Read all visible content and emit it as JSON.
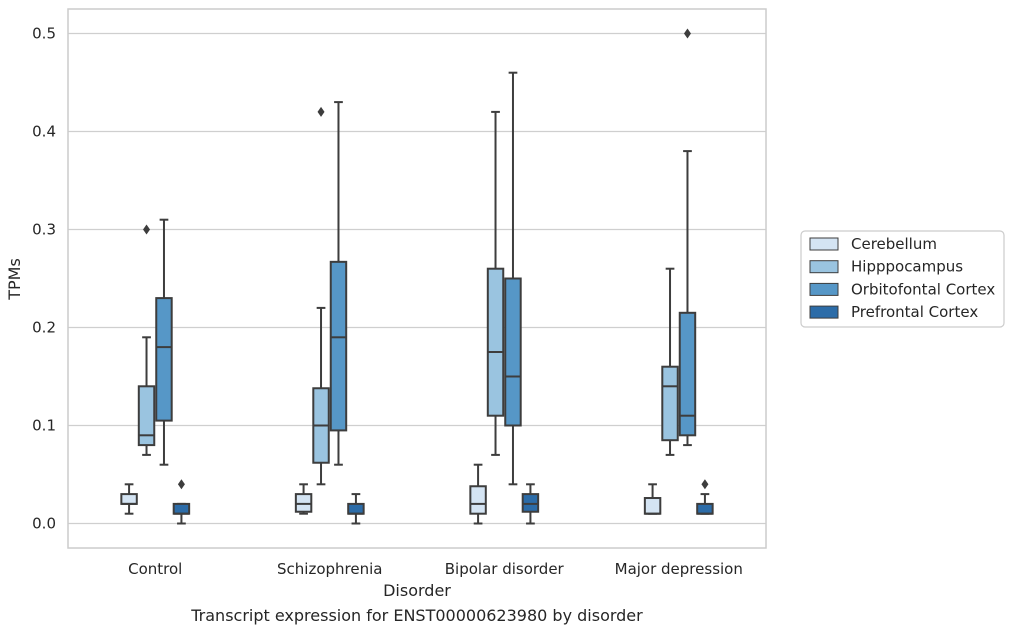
{
  "chart_data": {
    "type": "box",
    "caption": "Transcript expression for ENST00000623980 by disorder",
    "xlabel": "Disorder",
    "ylabel": "TPMs",
    "ylim": [
      -0.025,
      0.525
    ],
    "yticks": [
      "0.0",
      "0.1",
      "0.2",
      "0.3",
      "0.4",
      "0.5"
    ],
    "categories": [
      "Control",
      "Schizophrenia",
      "Bipolar disorder",
      "Major depression"
    ],
    "grid": true,
    "legend_position": "right",
    "series": [
      {
        "name": "Cerebellum",
        "color": "#d4e4f3",
        "boxes": [
          {
            "whisker_low": 0.01,
            "q1": 0.02,
            "median": 0.02,
            "q3": 0.03,
            "whisker_high": 0.04,
            "outliers": []
          },
          {
            "whisker_low": 0.01,
            "q1": 0.012,
            "median": 0.02,
            "q3": 0.03,
            "whisker_high": 0.04,
            "outliers": []
          },
          {
            "whisker_low": 0.0,
            "q1": 0.01,
            "median": 0.02,
            "q3": 0.038,
            "whisker_high": 0.06,
            "outliers": []
          },
          {
            "whisker_low": 0.01,
            "q1": 0.01,
            "median": 0.01,
            "q3": 0.026,
            "whisker_high": 0.04,
            "outliers": []
          }
        ]
      },
      {
        "name": "Hipppocampus",
        "color": "#9ac4e0",
        "boxes": [
          {
            "whisker_low": 0.07,
            "q1": 0.08,
            "median": 0.09,
            "q3": 0.14,
            "whisker_high": 0.19,
            "outliers": [
              0.3
            ]
          },
          {
            "whisker_low": 0.04,
            "q1": 0.062,
            "median": 0.1,
            "q3": 0.138,
            "whisker_high": 0.22,
            "outliers": [
              0.42
            ]
          },
          {
            "whisker_low": 0.07,
            "q1": 0.11,
            "median": 0.175,
            "q3": 0.26,
            "whisker_high": 0.42,
            "outliers": []
          },
          {
            "whisker_low": 0.07,
            "q1": 0.085,
            "median": 0.14,
            "q3": 0.16,
            "whisker_high": 0.26,
            "outliers": []
          }
        ]
      },
      {
        "name": "Orbitofontal Cortex",
        "color": "#5697c7",
        "boxes": [
          {
            "whisker_low": 0.06,
            "q1": 0.105,
            "median": 0.18,
            "q3": 0.23,
            "whisker_high": 0.31,
            "outliers": []
          },
          {
            "whisker_low": 0.06,
            "q1": 0.095,
            "median": 0.19,
            "q3": 0.267,
            "whisker_high": 0.43,
            "outliers": []
          },
          {
            "whisker_low": 0.04,
            "q1": 0.1,
            "median": 0.15,
            "q3": 0.25,
            "whisker_high": 0.46,
            "outliers": []
          },
          {
            "whisker_low": 0.08,
            "q1": 0.09,
            "median": 0.11,
            "q3": 0.215,
            "whisker_high": 0.38,
            "outliers": [
              0.5
            ]
          }
        ]
      },
      {
        "name": "Prefrontal Cortex",
        "color": "#2c6ca8",
        "boxes": [
          {
            "whisker_low": 0.0,
            "q1": 0.01,
            "median": 0.01,
            "q3": 0.02,
            "whisker_high": 0.02,
            "outliers": [
              0.04
            ]
          },
          {
            "whisker_low": 0.0,
            "q1": 0.01,
            "median": 0.01,
            "q3": 0.02,
            "whisker_high": 0.03,
            "outliers": []
          },
          {
            "whisker_low": 0.0,
            "q1": 0.012,
            "median": 0.02,
            "q3": 0.03,
            "whisker_high": 0.04,
            "outliers": []
          },
          {
            "whisker_low": 0.01,
            "q1": 0.01,
            "median": 0.01,
            "q3": 0.02,
            "whisker_high": 0.03,
            "outliers": [
              0.04
            ]
          }
        ]
      }
    ]
  }
}
